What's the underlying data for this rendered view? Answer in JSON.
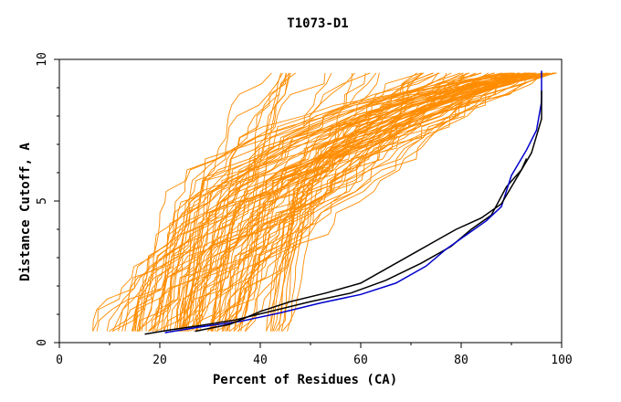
{
  "chart_data": {
    "type": "line",
    "title": "T1073-D1",
    "xlabel": "Percent of Residues (CA)",
    "ylabel": "Distance Cutoff, A",
    "xlim": [
      0,
      100
    ],
    "ylim": [
      0,
      10
    ],
    "x_ticks": [
      "0",
      "20",
      "40",
      "60",
      "80",
      "100"
    ],
    "y_ticks": [
      "0",
      "5",
      "10"
    ],
    "grid": false,
    "legend": "none",
    "colors": {
      "models": "#ff8c00",
      "highlight_1": "#000000",
      "highlight_2": "#0000cd",
      "highlight_3": "#000000"
    },
    "series": [
      {
        "color": "#000000",
        "points": [
          [
            17,
            0.3
          ],
          [
            22,
            0.45
          ],
          [
            28,
            0.6
          ],
          [
            35,
            0.8
          ],
          [
            42,
            1.1
          ],
          [
            50,
            1.45
          ],
          [
            58,
            1.75
          ],
          [
            65,
            2.2
          ],
          [
            72,
            2.8
          ],
          [
            78,
            3.4
          ],
          [
            82,
            4.0
          ],
          [
            86,
            4.5
          ],
          [
            89,
            5.5
          ],
          [
            92,
            6.1
          ],
          [
            93,
            6.5
          ]
        ]
      },
      {
        "color": "#0000cd",
        "points": [
          [
            21,
            0.35
          ],
          [
            28,
            0.55
          ],
          [
            36,
            0.75
          ],
          [
            44,
            1.05
          ],
          [
            52,
            1.4
          ],
          [
            60,
            1.7
          ],
          [
            67,
            2.1
          ],
          [
            73,
            2.7
          ],
          [
            77,
            3.3
          ],
          [
            81,
            3.8
          ],
          [
            85,
            4.3
          ],
          [
            88,
            4.8
          ],
          [
            90,
            5.9
          ],
          [
            93,
            6.8
          ],
          [
            95,
            7.5
          ],
          [
            96,
            8.5
          ],
          [
            96,
            9.6
          ]
        ]
      },
      {
        "color": "#000000",
        "points": [
          [
            27,
            0.4
          ],
          [
            34,
            0.65
          ],
          [
            40,
            1.1
          ],
          [
            46,
            1.45
          ],
          [
            53,
            1.75
          ],
          [
            60,
            2.1
          ],
          [
            66,
            2.7
          ],
          [
            71,
            3.2
          ],
          [
            75,
            3.6
          ],
          [
            79,
            4.0
          ],
          [
            84,
            4.4
          ],
          [
            88,
            4.9
          ],
          [
            91,
            5.8
          ],
          [
            94,
            6.7
          ],
          [
            96,
            7.9
          ],
          [
            96,
            8.9
          ]
        ]
      }
    ]
  }
}
